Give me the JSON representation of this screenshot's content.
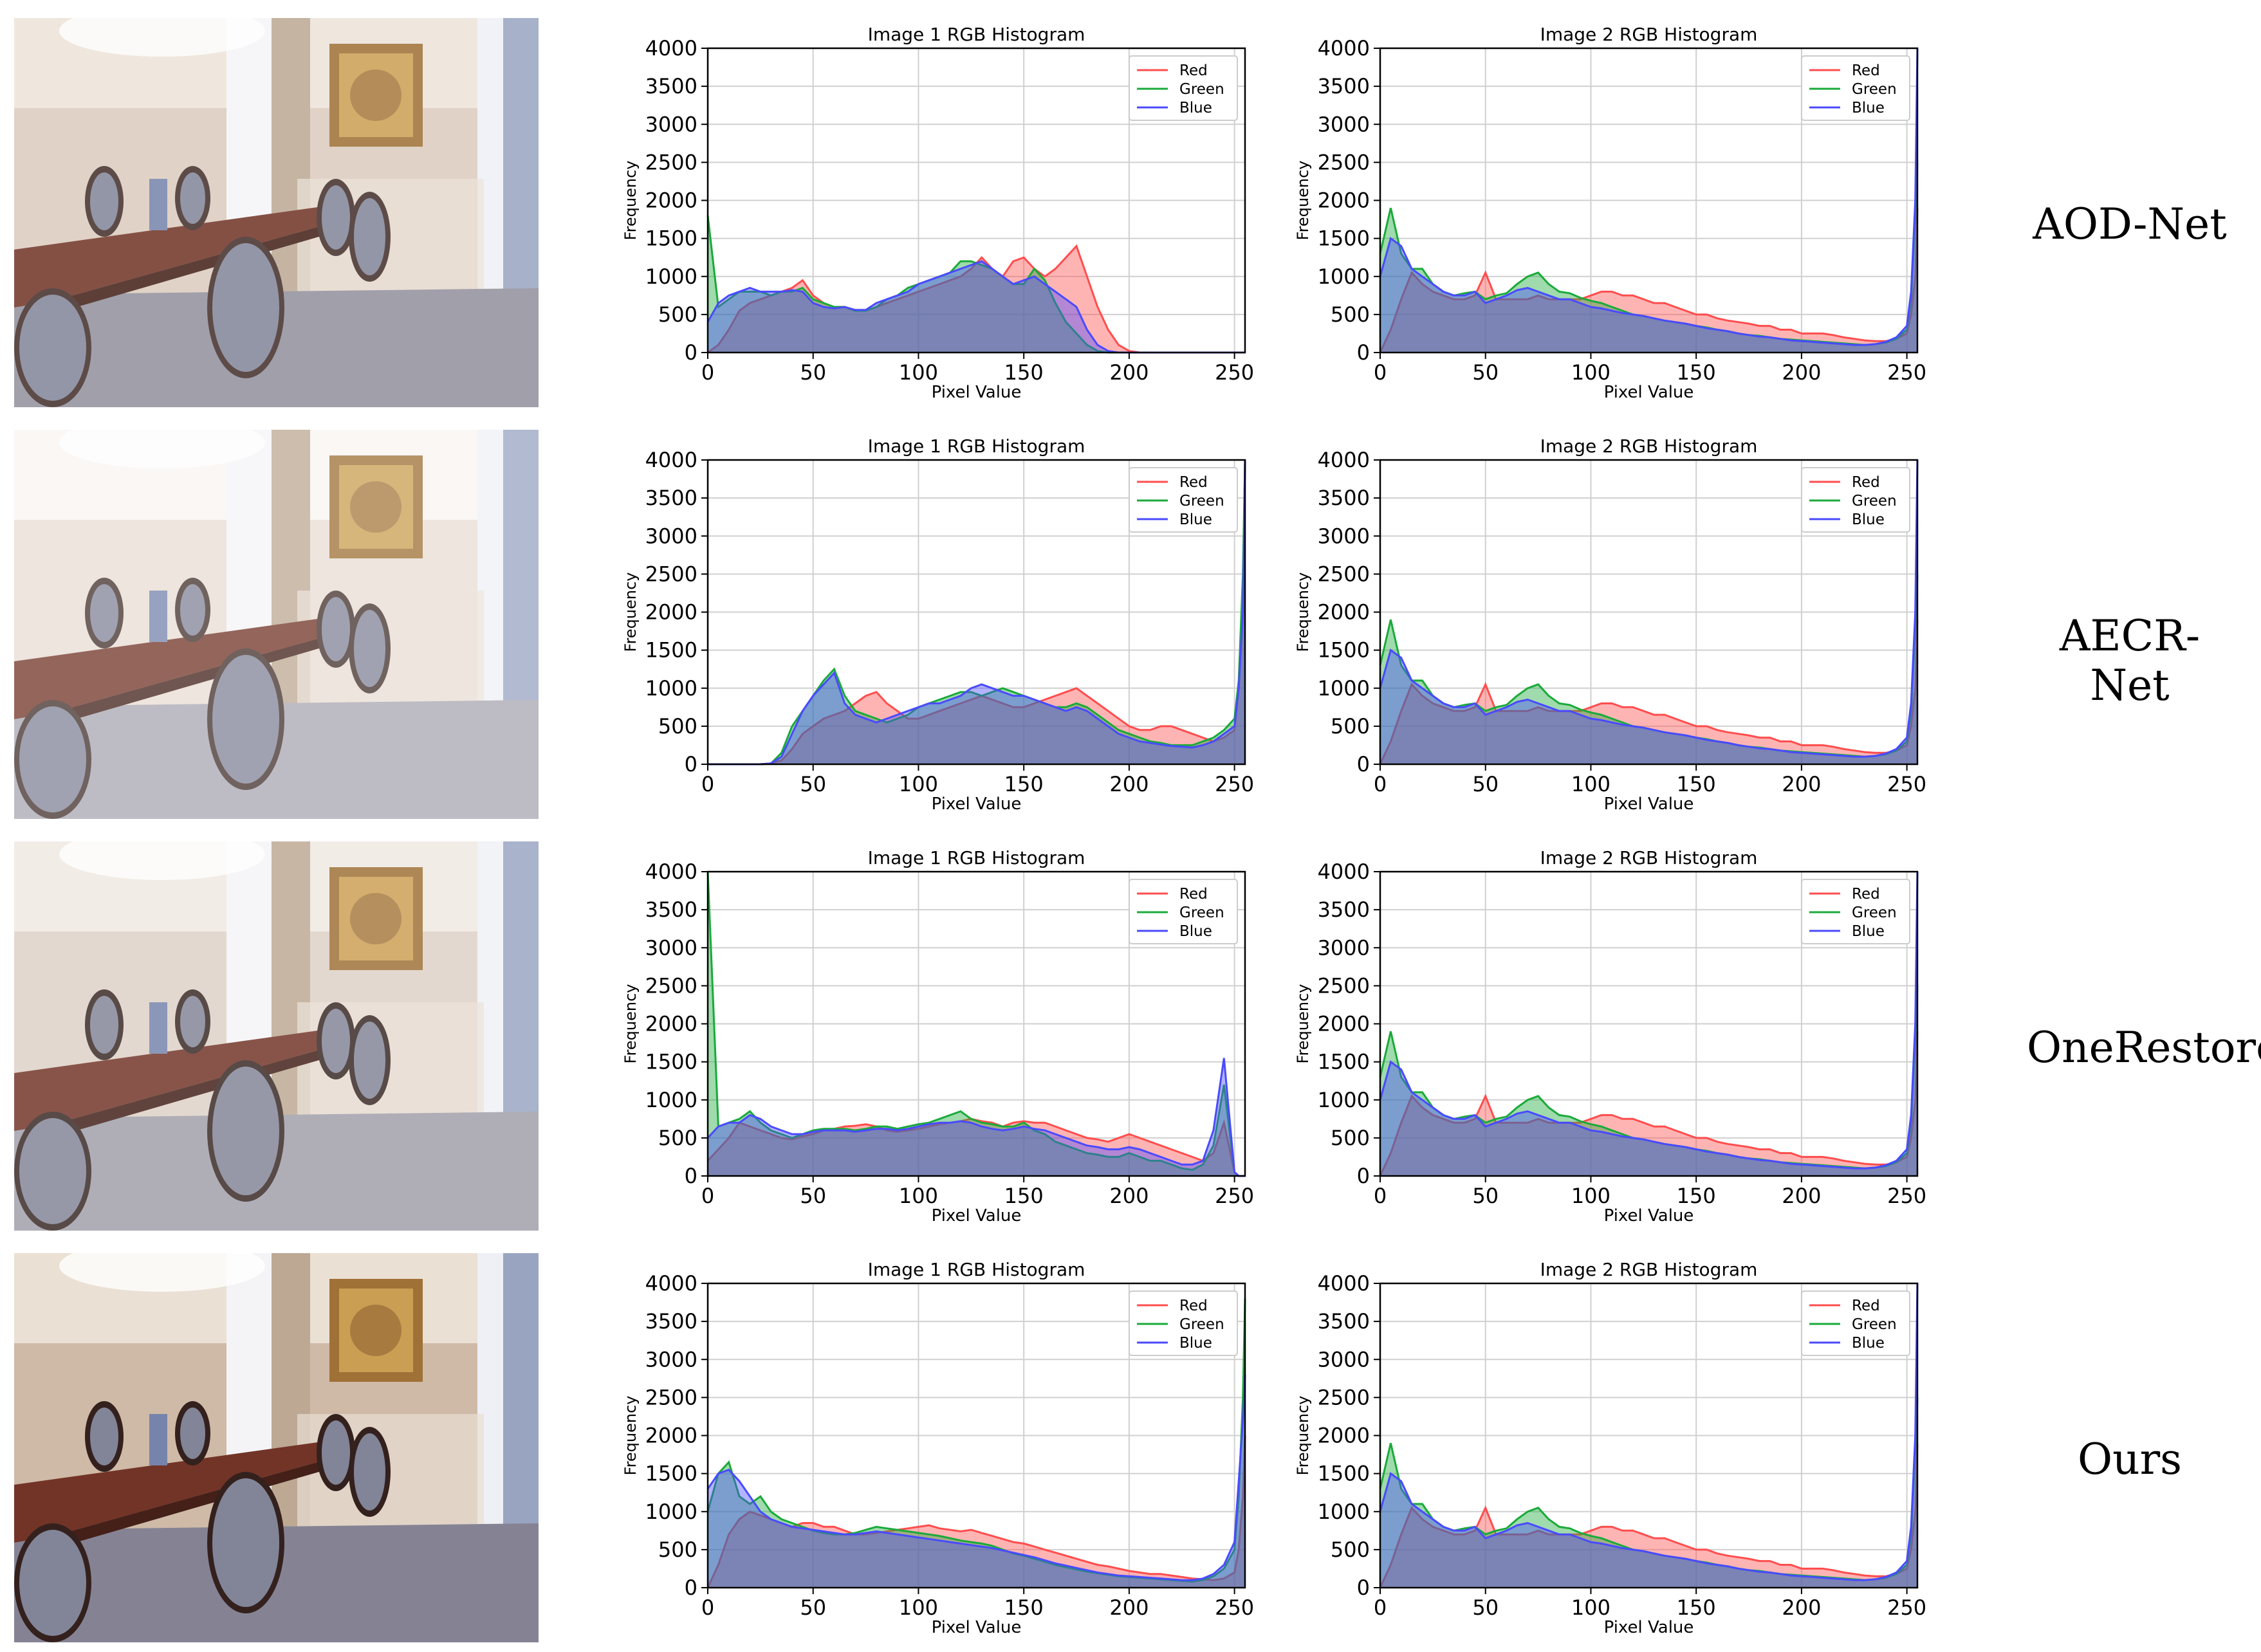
{
  "rows": [
    {
      "method": "AOD-Net",
      "img1": "aod",
      "img2": "gt"
    },
    {
      "method": "AECR-Net",
      "img1": "aecr",
      "img2": "gt"
    },
    {
      "method": "OneRestore",
      "img1": "onerestore",
      "img2": "gt"
    },
    {
      "method": "Ours",
      "img1": "ours",
      "img2": "gt"
    }
  ],
  "chart_text": {
    "title1": "Image 1 RGB Histogram",
    "title2": "Image 2 RGB Histogram",
    "xlabel": "Pixel Value",
    "ylabel": "Frequency",
    "legend": [
      "Red",
      "Green",
      "Blue"
    ]
  },
  "colors": {
    "red": "#ff4d4d",
    "green": "#1aaa3a",
    "blue": "#4a4aff"
  },
  "chart_data": {
    "type": "area",
    "xlim": [
      0,
      255
    ],
    "ylim": [
      0,
      4000
    ],
    "xticks": [
      0,
      50,
      100,
      150,
      200,
      250
    ],
    "yticks": [
      0,
      500,
      1000,
      1500,
      2000,
      2500,
      3000,
      3500,
      4000
    ],
    "grid": true,
    "legend_position": "top-right",
    "x": [
      0,
      5,
      10,
      15,
      20,
      25,
      30,
      35,
      40,
      45,
      50,
      55,
      60,
      65,
      70,
      75,
      80,
      85,
      90,
      95,
      100,
      105,
      110,
      115,
      120,
      125,
      130,
      135,
      140,
      145,
      150,
      155,
      160,
      165,
      170,
      175,
      180,
      185,
      190,
      195,
      200,
      205,
      210,
      215,
      220,
      225,
      230,
      235,
      240,
      245,
      250,
      252,
      254,
      255
    ],
    "histograms": {
      "gt": {
        "Red": [
          0,
          300,
          700,
          1050,
          900,
          800,
          750,
          700,
          700,
          750,
          1050,
          700,
          700,
          700,
          700,
          750,
          700,
          700,
          700,
          700,
          750,
          800,
          800,
          750,
          750,
          700,
          650,
          650,
          600,
          550,
          500,
          500,
          450,
          420,
          400,
          380,
          350,
          350,
          300,
          300,
          250,
          250,
          250,
          230,
          200,
          180,
          160,
          150,
          150,
          180,
          250,
          500,
          1000,
          1900
        ],
        "Green": [
          1300,
          1900,
          1300,
          1100,
          1100,
          900,
          800,
          750,
          780,
          800,
          700,
          750,
          780,
          900,
          1000,
          1050,
          900,
          800,
          780,
          720,
          680,
          650,
          600,
          550,
          500,
          480,
          450,
          420,
          400,
          380,
          350,
          330,
          300,
          280,
          250,
          230,
          220,
          200,
          180,
          170,
          160,
          150,
          140,
          130,
          120,
          110,
          100,
          110,
          130,
          180,
          300,
          700,
          1800,
          2500
        ],
        "Blue": [
          1000,
          1500,
          1400,
          1100,
          1000,
          900,
          800,
          750,
          750,
          800,
          650,
          700,
          750,
          820,
          850,
          800,
          750,
          700,
          700,
          650,
          600,
          580,
          550,
          520,
          500,
          480,
          450,
          420,
          400,
          380,
          350,
          320,
          300,
          280,
          250,
          230,
          210,
          200,
          180,
          160,
          150,
          140,
          130,
          120,
          110,
          100,
          100,
          110,
          140,
          200,
          350,
          800,
          2000,
          4000
        ]
      },
      "aod": {
        "Red": [
          0,
          100,
          300,
          550,
          650,
          700,
          750,
          800,
          850,
          950,
          750,
          650,
          600,
          600,
          550,
          550,
          600,
          650,
          700,
          750,
          800,
          850,
          900,
          950,
          1000,
          1100,
          1250,
          1100,
          1000,
          1200,
          1250,
          1100,
          1000,
          1100,
          1250,
          1400,
          1000,
          600,
          300,
          100,
          20,
          0,
          0,
          0,
          0,
          0,
          0,
          0,
          0,
          0,
          0,
          0,
          0,
          0
        ],
        "Green": [
          1800,
          600,
          700,
          800,
          800,
          800,
          750,
          800,
          800,
          850,
          700,
          650,
          600,
          600,
          550,
          550,
          600,
          700,
          750,
          850,
          900,
          950,
          1000,
          1050,
          1200,
          1200,
          1150,
          1100,
          1000,
          900,
          900,
          1100,
          950,
          650,
          400,
          250,
          100,
          20,
          0,
          0,
          0,
          0,
          0,
          0,
          0,
          0,
          0,
          0,
          0,
          0,
          0,
          0,
          0,
          0
        ],
        "Blue": [
          400,
          650,
          750,
          800,
          850,
          800,
          800,
          800,
          820,
          800,
          650,
          600,
          580,
          600,
          560,
          560,
          650,
          700,
          750,
          800,
          900,
          950,
          1000,
          1050,
          1100,
          1150,
          1200,
          1100,
          1000,
          900,
          950,
          1000,
          900,
          800,
          700,
          600,
          300,
          100,
          20,
          0,
          0,
          0,
          0,
          0,
          0,
          0,
          0,
          0,
          0,
          0,
          0,
          0,
          0,
          0
        ]
      },
      "aecr": {
        "Red": [
          0,
          0,
          0,
          0,
          0,
          0,
          10,
          50,
          200,
          400,
          500,
          600,
          650,
          700,
          800,
          900,
          950,
          800,
          700,
          600,
          600,
          650,
          700,
          750,
          800,
          850,
          900,
          850,
          800,
          750,
          750,
          800,
          850,
          900,
          950,
          1000,
          900,
          800,
          700,
          600,
          500,
          450,
          450,
          500,
          500,
          450,
          400,
          350,
          300,
          350,
          450,
          1000,
          2000,
          4000
        ],
        "Green": [
          0,
          0,
          0,
          0,
          0,
          0,
          10,
          150,
          500,
          700,
          900,
          1100,
          1250,
          900,
          700,
          650,
          600,
          550,
          600,
          650,
          750,
          800,
          850,
          900,
          950,
          950,
          900,
          950,
          1000,
          950,
          900,
          850,
          800,
          750,
          750,
          800,
          750,
          650,
          550,
          450,
          400,
          350,
          300,
          280,
          250,
          250,
          250,
          300,
          350,
          450,
          600,
          1100,
          2500,
          4000
        ],
        "Blue": [
          0,
          0,
          0,
          0,
          0,
          0,
          10,
          100,
          400,
          700,
          900,
          1050,
          1200,
          800,
          650,
          600,
          550,
          600,
          650,
          700,
          750,
          800,
          800,
          850,
          900,
          1000,
          1050,
          1000,
          950,
          900,
          900,
          850,
          800,
          750,
          700,
          750,
          700,
          600,
          500,
          400,
          350,
          300,
          280,
          260,
          240,
          230,
          220,
          250,
          300,
          400,
          500,
          1000,
          2000,
          4000
        ]
      },
      "onerestore": {
        "Red": [
          200,
          350,
          500,
          700,
          650,
          600,
          550,
          500,
          480,
          520,
          550,
          600,
          620,
          650,
          660,
          680,
          650,
          600,
          580,
          600,
          620,
          650,
          680,
          700,
          720,
          750,
          720,
          700,
          650,
          700,
          720,
          700,
          700,
          650,
          600,
          550,
          500,
          480,
          450,
          500,
          550,
          500,
          450,
          400,
          350,
          300,
          250,
          200,
          300,
          700,
          50,
          0,
          0,
          0
        ],
        "Green": [
          4000,
          650,
          700,
          750,
          850,
          700,
          600,
          550,
          500,
          550,
          600,
          620,
          620,
          620,
          600,
          620,
          650,
          650,
          620,
          650,
          680,
          700,
          750,
          800,
          850,
          750,
          700,
          680,
          650,
          650,
          700,
          600,
          550,
          450,
          400,
          350,
          300,
          280,
          250,
          250,
          300,
          250,
          200,
          200,
          150,
          100,
          80,
          150,
          400,
          1200,
          50,
          0,
          0,
          0
        ],
        "Blue": [
          500,
          650,
          700,
          700,
          800,
          750,
          650,
          600,
          550,
          550,
          580,
          600,
          600,
          600,
          580,
          600,
          620,
          620,
          600,
          620,
          650,
          680,
          700,
          700,
          720,
          700,
          650,
          620,
          600,
          620,
          650,
          620,
          600,
          550,
          500,
          450,
          400,
          380,
          350,
          350,
          380,
          350,
          300,
          250,
          200,
          150,
          150,
          200,
          600,
          1550,
          50,
          0,
          0,
          0
        ]
      },
      "ours": {
        "Red": [
          0,
          300,
          700,
          900,
          1000,
          950,
          900,
          850,
          800,
          850,
          850,
          800,
          800,
          750,
          700,
          700,
          720,
          740,
          760,
          780,
          800,
          820,
          780,
          760,
          740,
          760,
          720,
          680,
          640,
          600,
          580,
          540,
          500,
          460,
          420,
          380,
          340,
          300,
          280,
          250,
          220,
          200,
          180,
          180,
          160,
          140,
          120,
          110,
          100,
          120,
          200,
          500,
          1200,
          2000
        ],
        "Green": [
          1000,
          1500,
          1650,
          1200,
          1100,
          1200,
          1000,
          900,
          850,
          800,
          750,
          720,
          700,
          700,
          720,
          760,
          800,
          780,
          760,
          740,
          720,
          700,
          680,
          650,
          620,
          600,
          580,
          550,
          500,
          450,
          420,
          380,
          340,
          300,
          270,
          240,
          210,
          190,
          170,
          150,
          140,
          130,
          120,
          110,
          100,
          90,
          80,
          100,
          150,
          250,
          500,
          1200,
          2500,
          3800
        ],
        "Blue": [
          1300,
          1500,
          1550,
          1400,
          1200,
          1000,
          900,
          850,
          800,
          780,
          760,
          740,
          720,
          700,
          700,
          720,
          740,
          720,
          700,
          680,
          660,
          640,
          620,
          600,
          580,
          560,
          540,
          520,
          490,
          460,
          430,
          400,
          360,
          320,
          290,
          260,
          230,
          200,
          180,
          160,
          150,
          140,
          130,
          120,
          110,
          100,
          100,
          120,
          180,
          300,
          600,
          1400,
          2200,
          2800
        ]
      }
    }
  }
}
